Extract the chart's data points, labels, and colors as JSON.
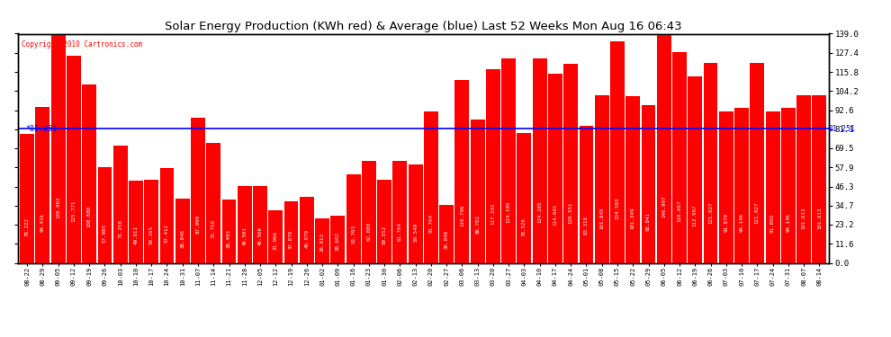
{
  "title": "Solar Energy Production (KWh red) & Average (blue) Last 52 Weeks Mon Aug 16 06:43",
  "copyright": "Copyright 2010 Cartronics.com",
  "average": 81.251,
  "bar_color": "#ff0000",
  "avg_line_color": "#0000ff",
  "background_color": "#ffffff",
  "plot_bg_color": "#ffffff",
  "yticks": [
    0.0,
    11.6,
    23.2,
    34.7,
    46.3,
    57.9,
    69.5,
    81.1,
    92.6,
    104.2,
    115.8,
    127.4,
    139.0
  ],
  "ylim": [
    0,
    139.0
  ],
  "weeks": [
    [
      "08-22",
      78.222
    ],
    [
      "08-29",
      94.416
    ],
    [
      "09-05",
      138.963
    ],
    [
      "09-12",
      125.771
    ],
    [
      "09-19",
      108.08
    ],
    [
      "09-26",
      57.985
    ],
    [
      "10-03",
      71.258
    ],
    [
      "10-10",
      49.811
    ],
    [
      "10-17",
      50.165
    ],
    [
      "10-24",
      57.412
    ],
    [
      "10-31",
      38.846
    ],
    [
      "11-07",
      87.99
    ],
    [
      "11-14",
      72.758
    ],
    [
      "11-21",
      38.493
    ],
    [
      "11-28",
      46.501
    ],
    [
      "12-05",
      46.506
    ],
    [
      "12-12",
      31.966
    ],
    [
      "12-19",
      37.079
    ],
    [
      "12-26",
      40.079
    ],
    [
      "01-02",
      26.813
    ],
    [
      "01-09",
      28.602
    ],
    [
      "01-16",
      53.703
    ],
    [
      "01-23",
      62.08
    ],
    [
      "01-30",
      50.552
    ],
    [
      "02-06",
      61.764
    ],
    [
      "02-13",
      59.549
    ],
    [
      "02-20",
      91.764
    ],
    [
      "02-27",
      35.049
    ],
    [
      "03-06",
      110.706
    ],
    [
      "03-13",
      86.702
    ],
    [
      "03-20",
      117.202
    ],
    [
      "03-27",
      124.195
    ],
    [
      "04-03",
      78.526
    ],
    [
      "04-10",
      124.205
    ],
    [
      "04-17",
      114.601
    ],
    [
      "04-24",
      120.551
    ],
    [
      "05-01",
      83.318
    ],
    [
      "05-08",
      101.845
    ],
    [
      "05-15",
      134.503
    ],
    [
      "05-22",
      101.349
    ],
    [
      "05-29",
      95.841
    ],
    [
      "06-05",
      140.907
    ],
    [
      "06-12",
      128.067
    ],
    [
      "06-19",
      112.967
    ],
    [
      "06-26",
      121.027
    ],
    [
      "07-03",
      91.879
    ],
    [
      "07-10",
      94.146
    ],
    [
      "07-17",
      121.027
    ],
    [
      "07-24",
      91.8
    ],
    [
      "07-31",
      94.146
    ],
    [
      "08-07",
      101.613
    ],
    [
      "08-14",
      101.613
    ]
  ]
}
